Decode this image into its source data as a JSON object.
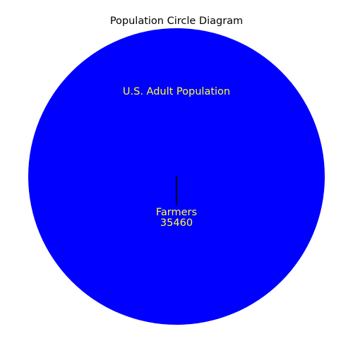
{
  "title": "Population Circle Diagram",
  "outer": {
    "label": "U.S. Adult Population",
    "fill_color": "#0000ff",
    "label_color": "#ffff33"
  },
  "inner": {
    "label": "Farmers",
    "value": "35460",
    "marker_color": "#000000",
    "label_color": "#ffff33"
  }
}
